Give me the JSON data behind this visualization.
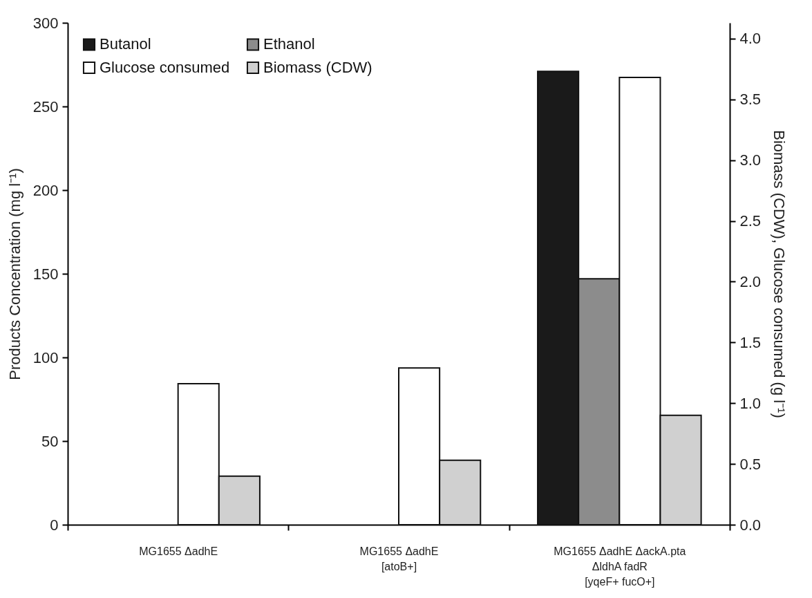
{
  "chart_data": {
    "type": "bar",
    "categories": [
      "MG1655 ΔadhE",
      "MG1655 ΔadhE\n[atoB+]",
      "MG1655 ΔadhE ΔackA.pta\nΔldhA fadR\n[yqeF+ fucO+]"
    ],
    "series": [
      {
        "name": "Butanol",
        "color": "#1a1a1a",
        "values": [
          null,
          null,
          271
        ]
      },
      {
        "name": "Ethanol",
        "color": "#8c8c8c",
        "values": [
          null,
          null,
          147
        ]
      },
      {
        "name": "Glucose consumed",
        "color": "#ffffff",
        "axis": "y2",
        "values": [
          1.16,
          1.29,
          3.68
        ]
      },
      {
        "name": "Biomass (CDW)",
        "color": "#d0d0d0",
        "axis": "y2",
        "values": [
          0.4,
          0.53,
          0.9
        ]
      }
    ],
    "ylabel": "Products Concentration (mg l⁻¹)",
    "y2label": "Biomass (CDW),  Glucose consumed (g l⁻¹)",
    "ylim": [
      0,
      300
    ],
    "yticks": [
      0,
      50,
      100,
      150,
      200,
      250,
      300
    ],
    "y2lim": [
      0,
      4.13
    ],
    "y2ticks": [
      {
        "value": 0,
        "label": "0.0"
      },
      {
        "value": 0.5,
        "label": "0.5"
      },
      {
        "value": 1,
        "label": "1.0"
      },
      {
        "value": 1.5,
        "label": "1.5"
      },
      {
        "value": 2,
        "label": "2.0"
      },
      {
        "value": 2.5,
        "label": "2.5"
      },
      {
        "value": 3,
        "label": "3.0"
      },
      {
        "value": 3.5,
        "label": "3.5"
      },
      {
        "value": 4,
        "label": "4.0"
      }
    ],
    "legend": "top left",
    "grid": false
  }
}
